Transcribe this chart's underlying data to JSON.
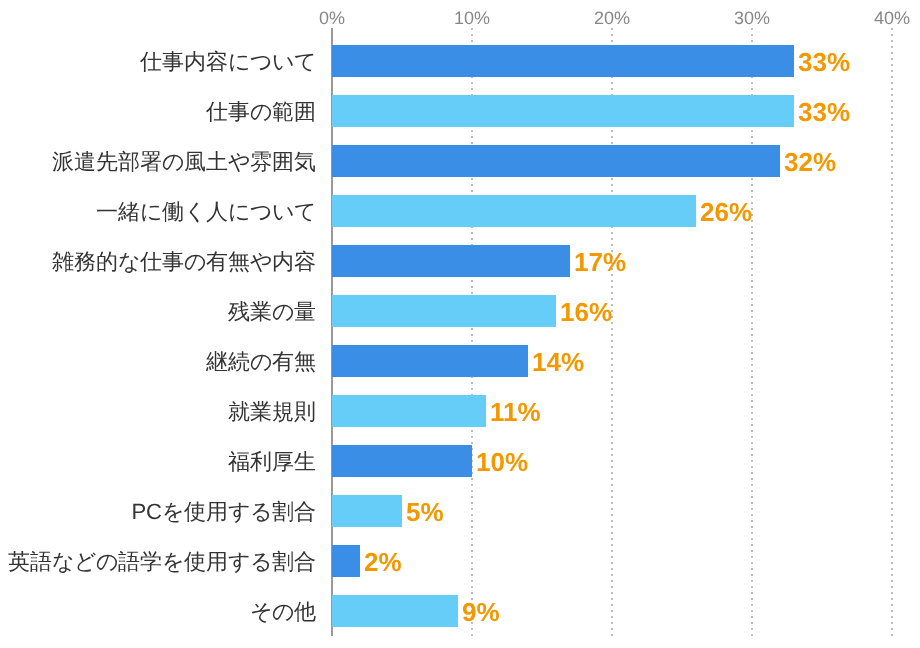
{
  "chart_data": {
    "type": "bar",
    "orientation": "horizontal",
    "categories": [
      "仕事内容について",
      "仕事の範囲",
      "派遣先部署の風土や雰囲気",
      "一緒に働く人について",
      "雑務的な仕事の有無や内容",
      "残業の量",
      "継続の有無",
      "就業規則",
      "福利厚生",
      "PCを使用する割合",
      "英語などの語学を使用する割合",
      "その他"
    ],
    "values": [
      33,
      33,
      32,
      26,
      17,
      16,
      14,
      11,
      10,
      5,
      2,
      9
    ],
    "value_labels": [
      "33%",
      "33%",
      "32%",
      "26%",
      "17%",
      "16%",
      "14%",
      "11%",
      "10%",
      "5%",
      "2%",
      "9%"
    ],
    "colors": [
      "#3a8ee6",
      "#66ccf8",
      "#3a8ee6",
      "#66ccf8",
      "#3a8ee6",
      "#66ccf8",
      "#3a8ee6",
      "#66ccf8",
      "#3a8ee6",
      "#66ccf8",
      "#3a8ee6",
      "#66ccf8"
    ],
    "xlim": [
      0,
      40
    ],
    "xticks": [
      {
        "value": 0,
        "label": "0%"
      },
      {
        "value": 10,
        "label": "10%"
      },
      {
        "value": 20,
        "label": "20%"
      },
      {
        "value": 30,
        "label": "30%"
      },
      {
        "value": 40,
        "label": "40%"
      }
    ],
    "grid": "x"
  }
}
